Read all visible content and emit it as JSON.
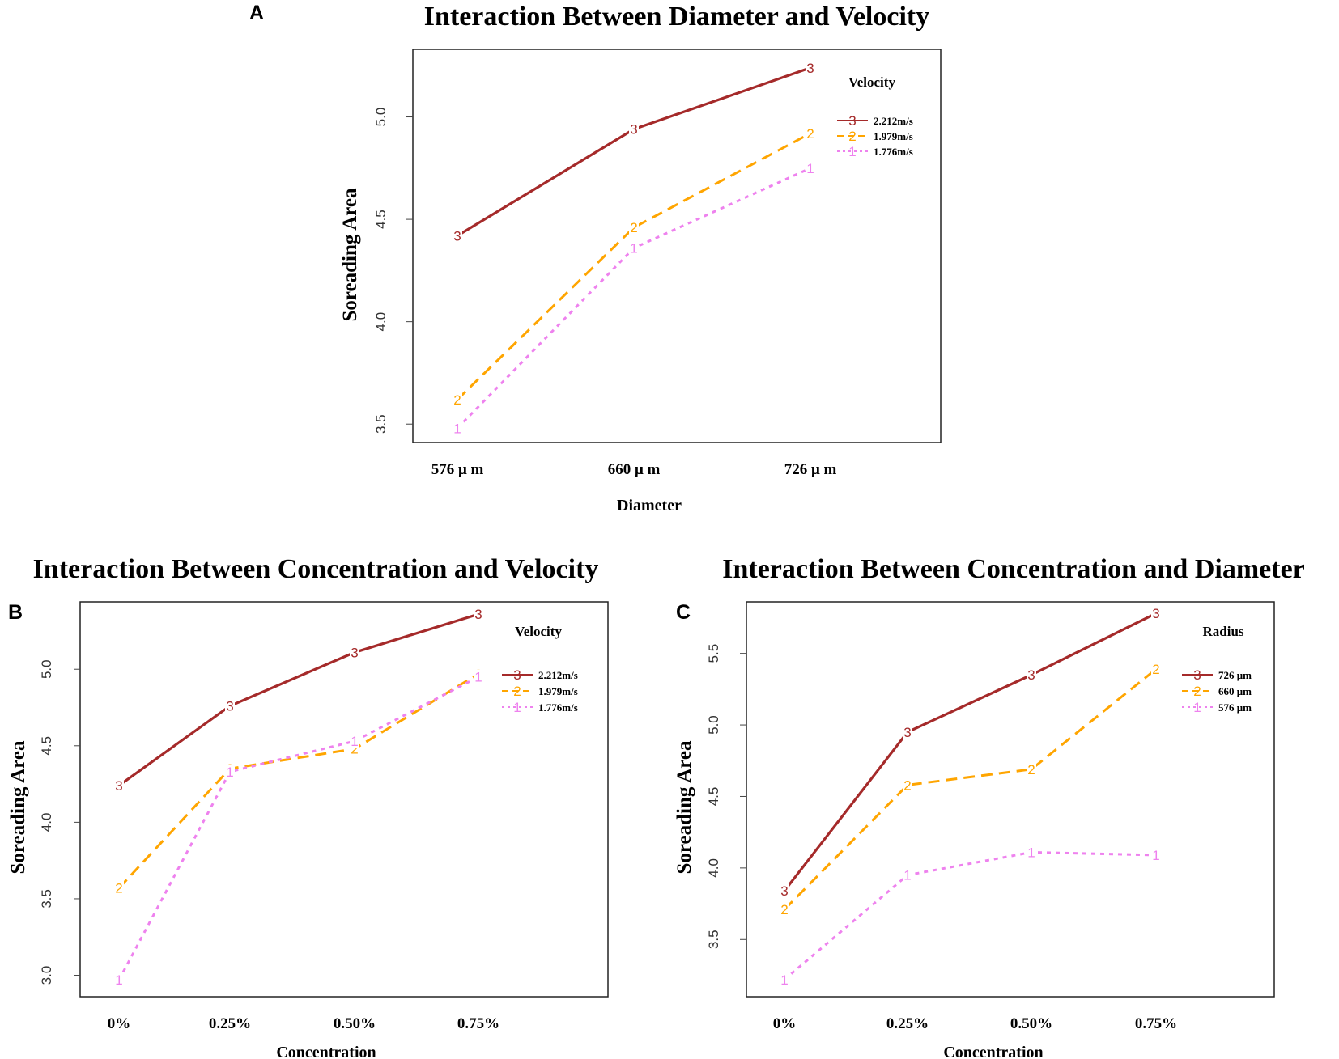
{
  "chart_data": [
    {
      "panel": "A",
      "type": "line",
      "title": "Interaction Between Diameter and Velocity",
      "xlabel": "Diameter",
      "ylabel": "Soreading Area",
      "categories": [
        "576 μ m",
        "660 μ m",
        "726 μ m"
      ],
      "yticks": [
        3.5,
        4.0,
        4.5,
        5.0
      ],
      "ylim": [
        3.41,
        5.33
      ],
      "legend_title": "Velocity",
      "series": [
        {
          "name": "2.212m/s",
          "symbol": "3",
          "color": "#a52a2a",
          "dash": "solid",
          "values": [
            4.42,
            4.94,
            5.24
          ]
        },
        {
          "name": "1.979m/s",
          "symbol": "2",
          "color": "#ffa500",
          "dash": "dashed",
          "values": [
            3.62,
            4.46,
            4.92
          ]
        },
        {
          "name": "1.776m/s",
          "symbol": "1",
          "color": "#ee82ee",
          "dash": "dotted",
          "values": [
            3.48,
            4.36,
            4.75
          ]
        }
      ]
    },
    {
      "panel": "B",
      "type": "line",
      "title": "Interaction Between Concentration and Velocity",
      "xlabel": "Concentration",
      "ylabel": "Soreading Area",
      "categories": [
        "0%",
        "0.25%",
        "0.50%",
        "0.75%"
      ],
      "yticks": [
        3.0,
        3.5,
        4.0,
        4.5,
        5.0
      ],
      "ylim": [
        2.86,
        5.44
      ],
      "legend_title": "Velocity",
      "series": [
        {
          "name": "2.212m/s",
          "symbol": "3",
          "color": "#a52a2a",
          "dash": "solid",
          "values": [
            4.24,
            4.76,
            5.11,
            5.36
          ]
        },
        {
          "name": "1.979m/s",
          "symbol": "2",
          "color": "#ffa500",
          "dash": "dashed",
          "values": [
            3.57,
            4.35,
            4.48,
            4.97
          ]
        },
        {
          "name": "1.776m/s",
          "symbol": "1",
          "color": "#ee82ee",
          "dash": "dotted",
          "values": [
            2.97,
            4.33,
            4.53,
            4.95
          ]
        }
      ]
    },
    {
      "panel": "C",
      "type": "line",
      "title": "Interaction Between Concentration and Diameter",
      "xlabel": "Concentration",
      "ylabel": "Soreading Area",
      "categories": [
        "0%",
        "0.25%",
        "0.50%",
        "0.75%"
      ],
      "yticks": [
        3.5,
        4.0,
        4.5,
        5.0,
        5.5
      ],
      "ylim": [
        3.1,
        5.86
      ],
      "legend_title": "Radius",
      "series": [
        {
          "name": "726 μm",
          "symbol": "3",
          "color": "#a52a2a",
          "dash": "solid",
          "values": [
            3.84,
            4.95,
            5.35,
            5.78
          ]
        },
        {
          "name": "660 μm",
          "symbol": "2",
          "color": "#ffa500",
          "dash": "dashed",
          "values": [
            3.71,
            4.58,
            4.69,
            5.39
          ]
        },
        {
          "name": "576 μm",
          "symbol": "1",
          "color": "#ee82ee",
          "dash": "dotted",
          "values": [
            3.22,
            3.95,
            4.11,
            4.09
          ]
        }
      ]
    }
  ]
}
